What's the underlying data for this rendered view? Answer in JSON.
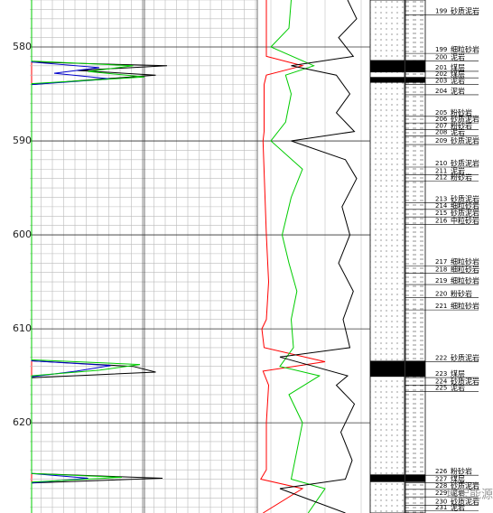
{
  "chart_data": {
    "type": "well-log",
    "ylim": [
      575,
      629.6
    ],
    "yticks": [
      580,
      590,
      600,
      610,
      620
    ],
    "minor_step": 1,
    "coal_intervals": [
      [
        581.4,
        582.7
      ],
      [
        583.2,
        583.8
      ],
      [
        613.4,
        615.1
      ],
      [
        625.5,
        626.3
      ]
    ],
    "layers": [
      {
        "number": "199",
        "name": "砂质泥岩",
        "depth": 576.2
      },
      {
        "number": "199",
        "name": "细粒砂岩",
        "depth": 580.3
      },
      {
        "number": "200",
        "name": "泥岩",
        "depth": 581.1
      },
      {
        "number": "201",
        "name": "煤层",
        "depth": 582.2
      },
      {
        "number": "202",
        "name": "煤层",
        "depth": 582.9
      },
      {
        "number": "203",
        "name": "泥岩",
        "depth": 583.6
      },
      {
        "number": "204",
        "name": "泥岩",
        "depth": 584.7
      },
      {
        "number": "205",
        "name": "粉砂岩",
        "depth": 587.0
      },
      {
        "number": "206",
        "name": "砂质泥岩",
        "depth": 587.7
      },
      {
        "number": "207",
        "name": "粉砂岩",
        "depth": 588.4
      },
      {
        "number": "208",
        "name": "泥岩",
        "depth": 589.1
      },
      {
        "number": "209",
        "name": "砂质泥岩",
        "depth": 590.0
      },
      {
        "number": "210",
        "name": "砂质泥岩",
        "depth": 592.4
      },
      {
        "number": "211",
        "name": "泥岩",
        "depth": 593.2
      },
      {
        "number": "212",
        "name": "粉砂岩",
        "depth": 593.9
      },
      {
        "number": "213",
        "name": "砂质泥岩",
        "depth": 596.2
      },
      {
        "number": "214",
        "name": "细粒砂岩",
        "depth": 596.9
      },
      {
        "number": "215",
        "name": "砂质泥岩",
        "depth": 597.7
      },
      {
        "number": "216",
        "name": "中粒砂岩",
        "depth": 598.5
      },
      {
        "number": "217",
        "name": "细粒砂岩",
        "depth": 602.9
      },
      {
        "number": "218",
        "name": "细粒砂岩",
        "depth": 603.7
      },
      {
        "number": "219",
        "name": "细粒砂岩",
        "depth": 604.9
      },
      {
        "number": "220",
        "name": "粉砂岩",
        "depth": 606.3
      },
      {
        "number": "221",
        "name": "细粒砂岩",
        "depth": 607.6
      },
      {
        "number": "222",
        "name": "砂质泥岩",
        "depth": 613.1
      },
      {
        "number": "223",
        "name": "煤层",
        "depth": 614.8
      },
      {
        "number": "224",
        "name": "砂质泥岩",
        "depth": 615.6
      },
      {
        "number": "225",
        "name": "泥岩",
        "depth": 616.3
      },
      {
        "number": "226",
        "name": "粉砂岩",
        "depth": 625.2
      },
      {
        "number": "227",
        "name": "煤层",
        "depth": 626.0
      },
      {
        "number": "228",
        "name": "砂质泥岩",
        "depth": 626.7
      },
      {
        "number": "229",
        "name": "泥岩",
        "depth": 627.5
      },
      {
        "number": "230",
        "name": "砂质泥岩",
        "depth": 628.4
      },
      {
        "number": "231",
        "name": "泥岩",
        "depth": 629.0
      }
    ],
    "tracks": [
      {
        "xlim": [
          0,
          100
        ],
        "curves": [
          {
            "color": "#000000",
            "depths": [
              575,
              581.6,
              582.0,
              582.5,
              583.0,
              583.6,
              584.0,
              613.4,
              614.0,
              614.6,
              615.2,
              625.4,
              625.9,
              626.4,
              629.6
            ],
            "values": [
              0,
              0,
              60,
              20,
              55,
              20,
              0,
              0,
              45,
              55,
              0,
              0,
              58,
              0,
              0
            ]
          },
          {
            "color": "#0000cc",
            "depths": [
              575,
              581.6,
              582.2,
              582.8,
              583.4,
              584.0,
              613.4,
              613.9,
              614.5,
              615.1,
              625.4,
              625.9,
              626.4,
              629.6
            ],
            "values": [
              0,
              0,
              30,
              10,
              35,
              0,
              0,
              35,
              20,
              0,
              0,
              25,
              0,
              0
            ]
          },
          {
            "color": "#00cc00",
            "depths": [
              575,
              581.5,
              582.0,
              582.6,
              583.2,
              583.9,
              613.3,
              613.8,
              614.4,
              615.0,
              625.4,
              625.8,
              626.3,
              629.6
            ],
            "values": [
              0,
              0,
              45,
              25,
              50,
              0,
              0,
              48,
              30,
              0,
              0,
              40,
              0,
              0
            ]
          }
        ]
      },
      {
        "xlim": [
          0,
          100
        ],
        "curves": [
          {
            "color": "#ff0000",
            "depths": [
              575,
              581,
              582,
              583,
              584,
              589,
              590,
              600,
              605,
              609,
              610,
              612,
              613.5,
              614.5,
              616,
              620,
              625,
              626,
              627,
              629.6
            ],
            "values": [
              8,
              8,
              40,
              8,
              6,
              6,
              5,
              8,
              10,
              8,
              4,
              6,
              60,
              5,
              10,
              8,
              8,
              3,
              40,
              5
            ]
          },
          {
            "color": "#00cc00",
            "depths": [
              575,
              578,
              580,
              582,
              583,
              585,
              588,
              590,
              593,
              596,
              600,
              603,
              606,
              609,
              612,
              614,
              615,
              617,
              620,
              623,
              626,
              627,
              629.6
            ],
            "values": [
              30,
              28,
              12,
              50,
              25,
              30,
              25,
              12,
              40,
              30,
              22,
              28,
              35,
              30,
              32,
              20,
              55,
              28,
              40,
              35,
              30,
              60,
              45
            ]
          },
          {
            "color": "#000000",
            "depths": [
              575,
              577,
              579,
              581,
              582,
              583,
              585,
              587,
              589,
              590,
              592,
              594,
              597,
              600,
              603,
              606,
              609,
              612,
              613,
              615,
              616,
              618,
              621,
              624,
              626,
              627,
              629.6
            ],
            "values": [
              80,
              88,
              72,
              85,
              30,
              70,
              82,
              70,
              86,
              30,
              78,
              88,
              75,
              82,
              72,
              85,
              76,
              82,
              20,
              80,
              70,
              86,
              74,
              84,
              78,
              20,
              78
            ]
          }
        ]
      }
    ],
    "watermark": "地宏能源"
  }
}
